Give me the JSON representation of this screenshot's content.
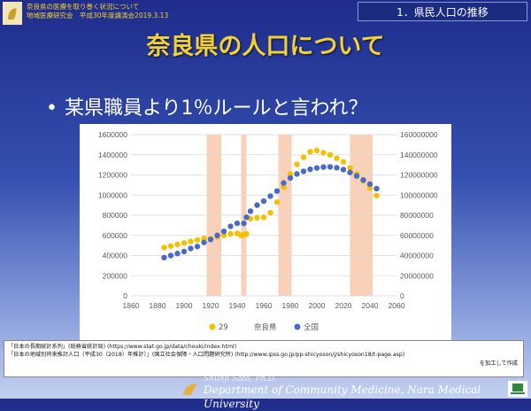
{
  "header": {
    "line1": "奈良県の医療を取り巻く状況について",
    "line2": "地域医療研究会　平成30年度講演会2019.3.13",
    "section": "1．県民人口の推移"
  },
  "title": "奈良県の人口について",
  "bullet": "某県職員より1％ルールと言われ？",
  "colors": {
    "yellow": "#f5c000",
    "blue": "#4a6ac8",
    "shade": "#f7c9ac"
  },
  "chart_data": {
    "type": "scatter",
    "xlim": [
      1860,
      2060
    ],
    "xticks": [
      "1860",
      "1880",
      "1900",
      "1920",
      "1940",
      "1960",
      "1980",
      "2000",
      "2020",
      "2040",
      "2060"
    ],
    "ylim_left": [
      0,
      1600000
    ],
    "yticks_left": [
      "0",
      "200000",
      "400000",
      "600000",
      "800000",
      "1000000",
      "1200000",
      "1400000",
      "1600000"
    ],
    "ylim_right": [
      0,
      160000000
    ],
    "yticks_right": [
      "0",
      "20000000",
      "40000000",
      "60000000",
      "80000000",
      "100000000",
      "120000000",
      "140000000",
      "160000000"
    ],
    "shaded_ranges": [
      [
        1917,
        1928
      ],
      [
        1943,
        1947
      ],
      [
        1971,
        1981
      ],
      [
        2025,
        2042
      ]
    ],
    "legend": [
      "29",
      "奈良県",
      "全国"
    ],
    "legend_position": "bottom",
    "series": [
      {
        "name": "奈良県",
        "axis": "left",
        "color": "#f5c000",
        "x": [
          1885,
          1890,
          1895,
          1900,
          1905,
          1910,
          1915,
          1920,
          1925,
          1930,
          1935,
          1940,
          1943,
          1945,
          1947,
          1950,
          1955,
          1960,
          1965,
          1970,
          1975,
          1980,
          1985,
          1990,
          1995,
          2000,
          2005,
          2010,
          2015,
          2020,
          2025,
          2030,
          2035,
          2040,
          2045
        ],
        "y": [
          480000,
          495000,
          510000,
          525000,
          540000,
          555000,
          570000,
          565000,
          585000,
          600000,
          615000,
          620000,
          600000,
          610000,
          615000,
          765000,
          775000,
          780000,
          825000,
          930000,
          1080000,
          1210000,
          1305000,
          1375000,
          1430000,
          1443000,
          1420000,
          1400000,
          1365000,
          1330000,
          1270000,
          1210000,
          1140000,
          1070000,
          995000
        ]
      },
      {
        "name": "全国",
        "axis": "right",
        "color": "#4a6ac8",
        "x": [
          1885,
          1890,
          1895,
          1900,
          1905,
          1910,
          1915,
          1920,
          1925,
          1930,
          1935,
          1940,
          1945,
          1947,
          1950,
          1955,
          1960,
          1965,
          1970,
          1975,
          1980,
          1985,
          1990,
          1995,
          2000,
          2005,
          2010,
          2015,
          2020,
          2025,
          2030,
          2035,
          2040,
          2045
        ],
        "y": [
          38000000,
          40000000,
          42000000,
          44000000,
          47000000,
          49000000,
          53000000,
          56000000,
          60000000,
          64000000,
          69000000,
          72000000,
          72000000,
          78000000,
          84000000,
          90000000,
          94000000,
          99000000,
          104000000,
          112000000,
          117000000,
          121000000,
          123600000,
          125600000,
          126900000,
          127800000,
          128000000,
          127100000,
          125300000,
          122500000,
          119000000,
          115000000,
          110900000,
          106400000
        ]
      }
    ]
  },
  "sources": {
    "line1": "「日本の長期統計系列」(総務省統計局) (https://www.stat.go.jp/data/chouki/index.html)",
    "line2": "「日本の地域別将来推計人口（平成30（2018）年推計）」(国立社会保障・人口問題研究所) (http://www.ipss.go.jp/pp-shicyoson/j/shicyoson18/t-page.asp)",
    "line3": "を加工して作成"
  },
  "footer": {
    "name": "Shuhji Sato, Ph.D.",
    "dept": "Department of Community Medicine, Nara Medical University"
  }
}
